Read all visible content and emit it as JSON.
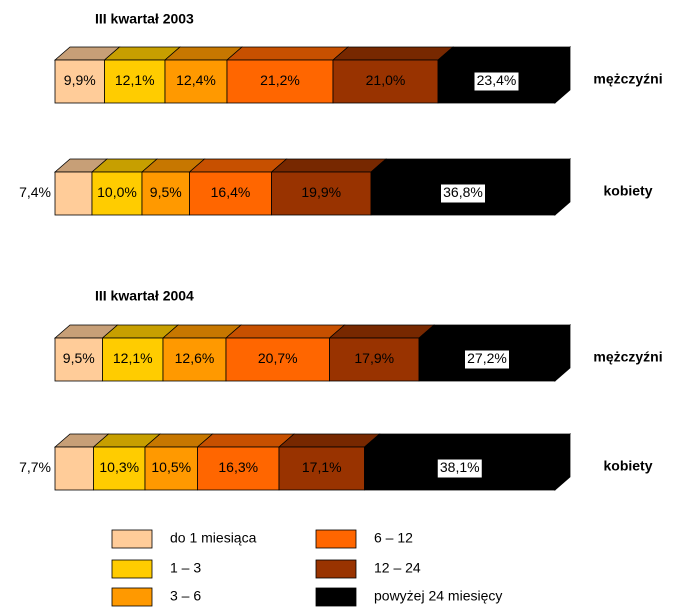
{
  "chart_data": [
    {
      "type": "bar",
      "orientation": "horizontal",
      "stacked": true,
      "title": "III kwartał 2003",
      "categories": [
        "mężczyźni",
        "kobiety"
      ],
      "xlim": [
        0,
        100
      ],
      "series": [
        {
          "name": "do 1 miesiąca",
          "color": "#ffcc99",
          "values": [
            9.9,
            7.4
          ],
          "value_labels": [
            "9,9%",
            "7,4%"
          ]
        },
        {
          "name": "1 – 3",
          "color": "#ffcc00",
          "values": [
            12.1,
            10.0
          ],
          "value_labels": [
            "12,1%",
            "10,0%"
          ]
        },
        {
          "name": "3 – 6",
          "color": "#ff9900",
          "values": [
            12.4,
            9.5
          ],
          "value_labels": [
            "12,4%",
            "9,5%"
          ]
        },
        {
          "name": "6 – 12",
          "color": "#ff6600",
          "values": [
            21.2,
            16.4
          ],
          "value_labels": [
            "21,2%",
            "16,4%"
          ]
        },
        {
          "name": "12 – 24",
          "color": "#993300",
          "values": [
            21.0,
            19.9
          ],
          "value_labels": [
            "21,0%",
            "19,9%"
          ]
        },
        {
          "name": "powyżej 24 miesięcy",
          "color": "#000000",
          "values": [
            23.4,
            36.8
          ],
          "value_labels": [
            "23,4%",
            "36,8%"
          ]
        }
      ]
    },
    {
      "type": "bar",
      "orientation": "horizontal",
      "stacked": true,
      "title": "III kwartał 2004",
      "categories": [
        "mężczyźni",
        "kobiety"
      ],
      "xlim": [
        0,
        100
      ],
      "series": [
        {
          "name": "do 1 miesiąca",
          "color": "#ffcc99",
          "values": [
            9.5,
            7.7
          ],
          "value_labels": [
            "9,5%",
            "7,7%"
          ]
        },
        {
          "name": "1 – 3",
          "color": "#ffcc00",
          "values": [
            12.1,
            10.3
          ],
          "value_labels": [
            "12,1%",
            "10,3%"
          ]
        },
        {
          "name": "3 – 6",
          "color": "#ff9900",
          "values": [
            12.6,
            10.5
          ],
          "value_labels": [
            "12,6%",
            "10,5%"
          ]
        },
        {
          "name": "6 – 12",
          "color": "#ff6600",
          "values": [
            20.7,
            16.3
          ],
          "value_labels": [
            "20,7%",
            "16,3%"
          ]
        },
        {
          "name": "12 – 24",
          "color": "#993300",
          "values": [
            17.9,
            17.1
          ],
          "value_labels": [
            "17,9%",
            "17,1%"
          ]
        },
        {
          "name": "powyżej 24 miesięcy",
          "color": "#000000",
          "values": [
            27.2,
            38.1
          ],
          "value_labels": [
            "27,2%",
            "38,1%"
          ]
        }
      ]
    }
  ]
}
